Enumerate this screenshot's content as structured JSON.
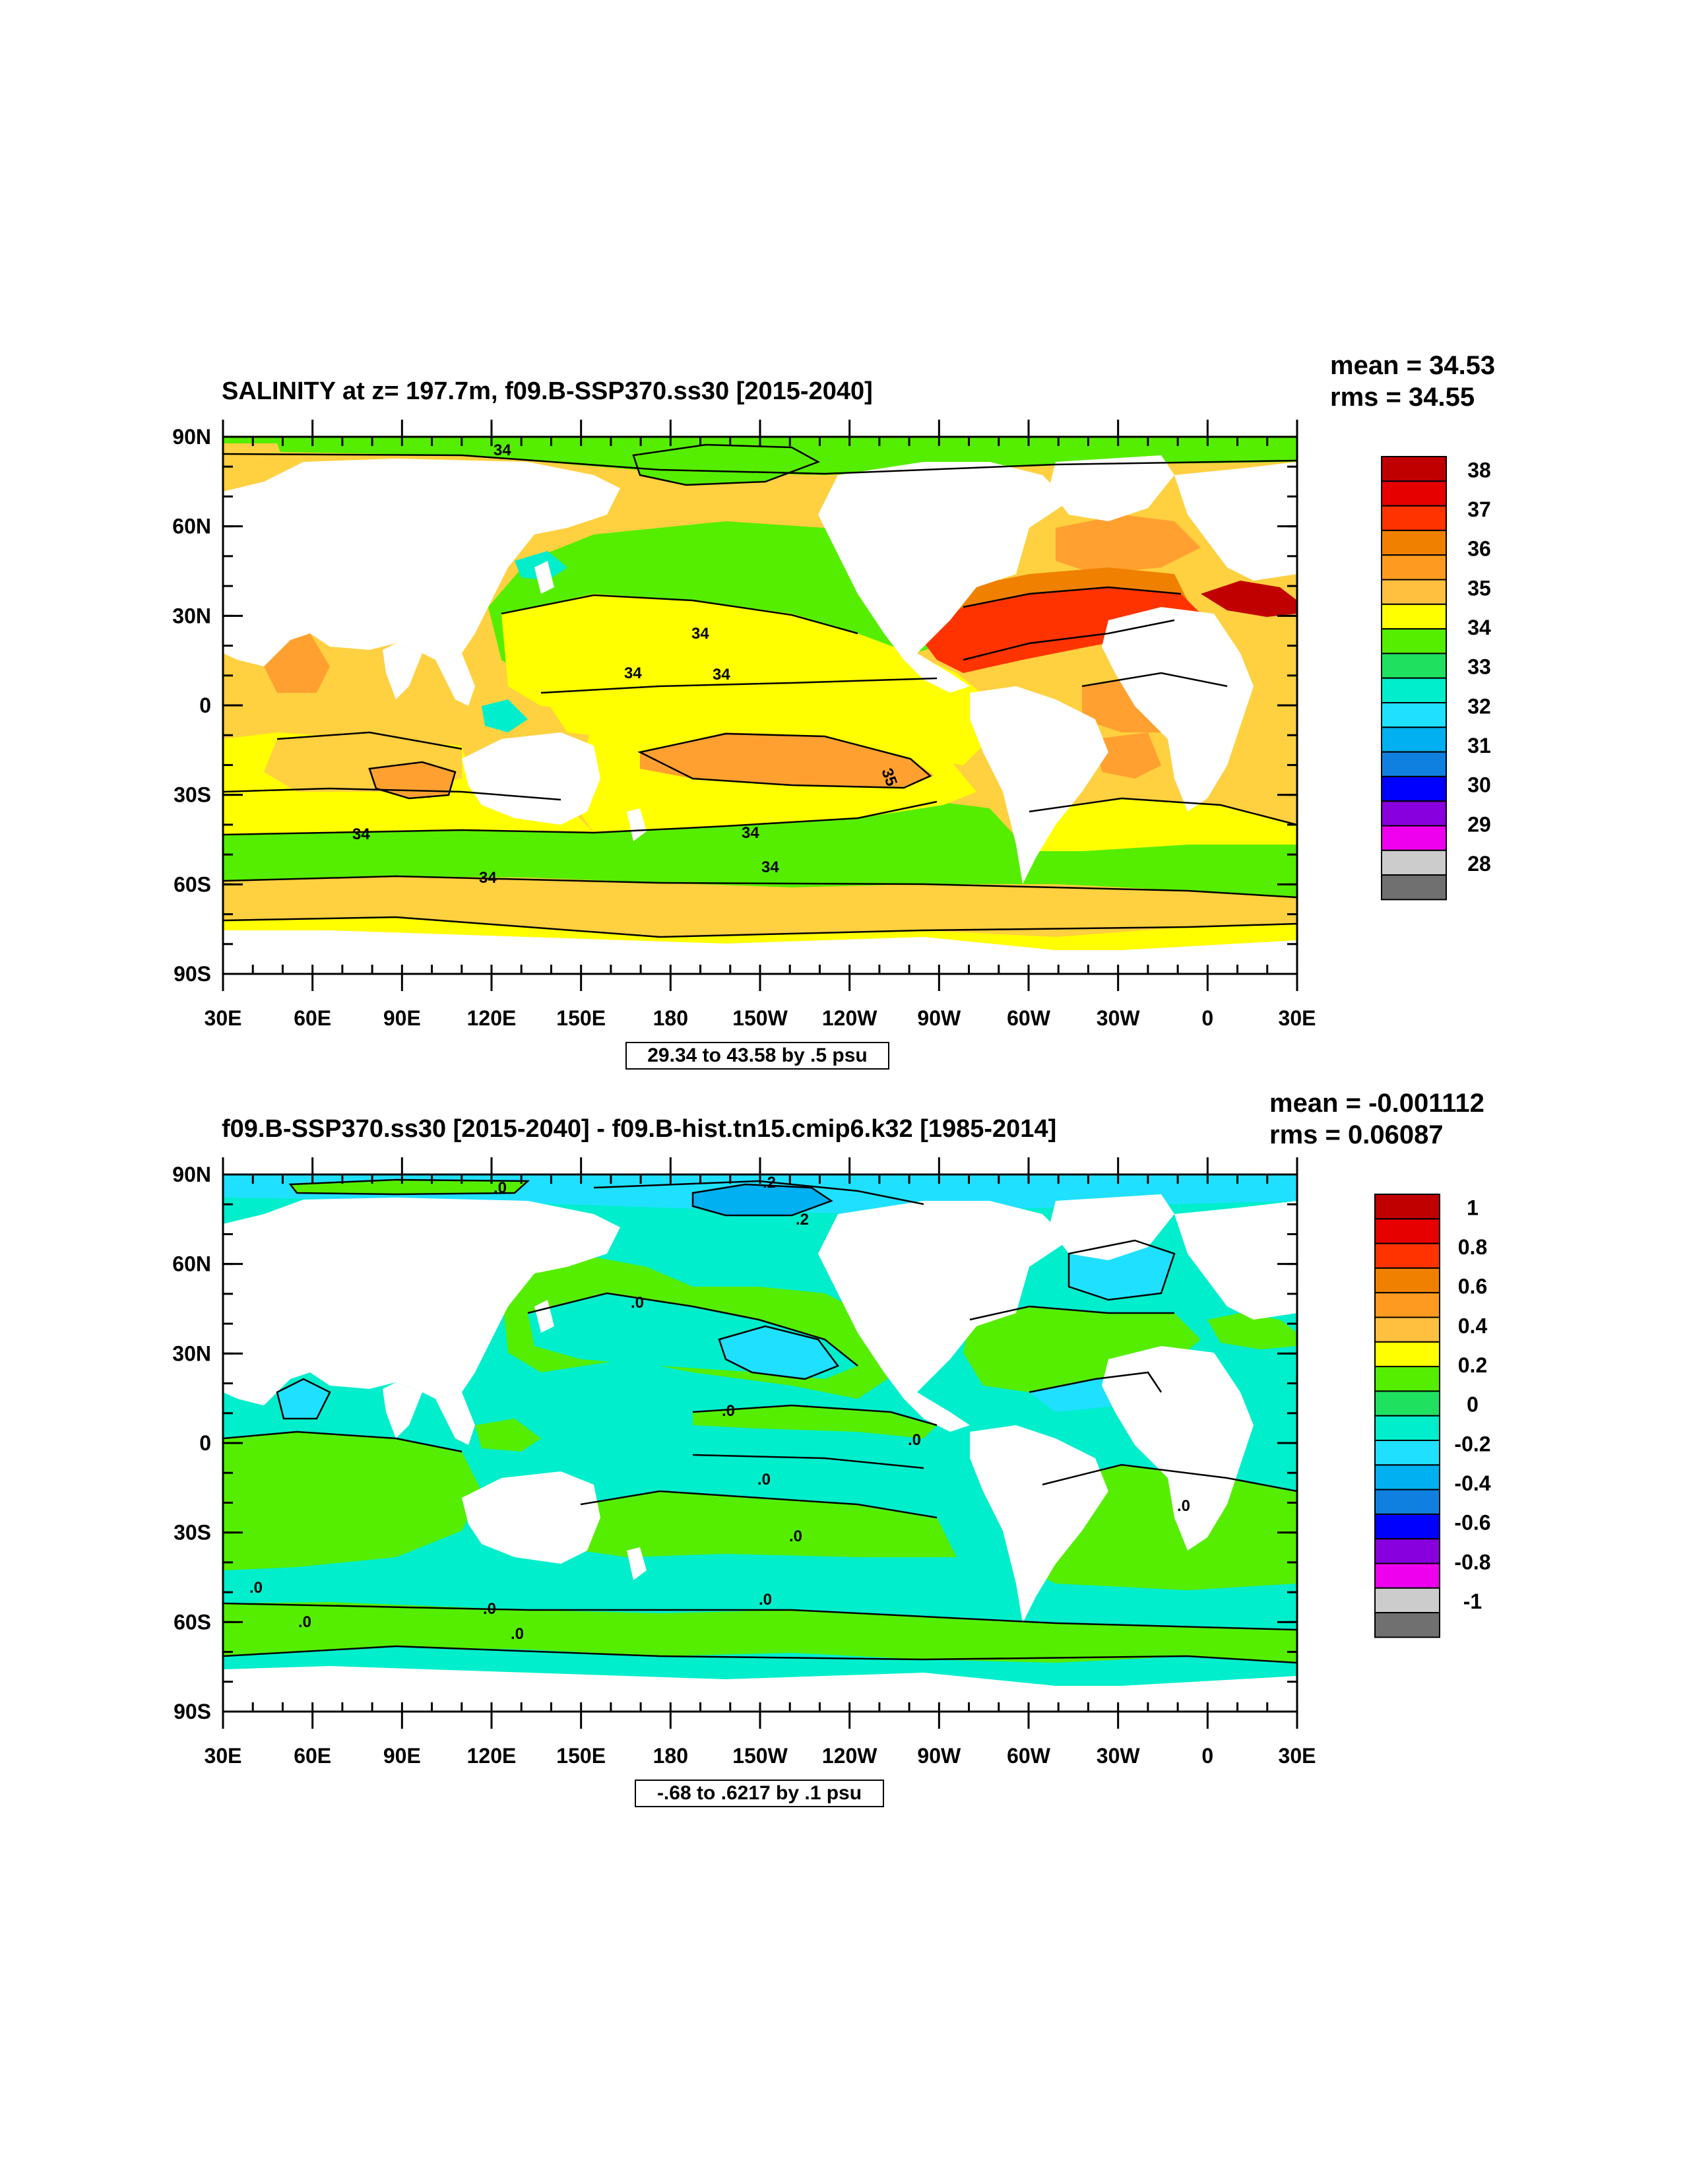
{
  "panels": [
    {
      "title": "SALINITY at z= 197.7m, f09.B-SSP370.ss30 [2015-2040]",
      "mean_text": "mean = 34.53",
      "rms_text": "rms = 34.55",
      "range_text": "29.34 to 43.58 by .5 psu",
      "lat_labels": [
        "90N",
        "60N",
        "30N",
        "0",
        "30S",
        "60S",
        "90S"
      ],
      "lon_labels": [
        "30E",
        "60E",
        "90E",
        "120E",
        "150E",
        "180",
        "150W",
        "120W",
        "90W",
        "60W",
        "30W",
        "0",
        "30E"
      ],
      "colorbar_labels": [
        "38",
        "37",
        "36",
        "35",
        "34",
        "33",
        "32",
        "31",
        "30",
        "29",
        "28"
      ],
      "colorbar_colors": [
        "#c00000",
        "#e60000",
        "#ff3300",
        "#f08000",
        "#ff9a20",
        "#ffc040",
        "#ffff00",
        "#55ee00",
        "#20e060",
        "#00eecc",
        "#20e0ff",
        "#00b0f0",
        "#1080e0",
        "#0000ff",
        "#8800dd",
        "#ee00ee",
        "#cccccc",
        "#707070"
      ],
      "contour_labels": [
        "34",
        "34",
        "34",
        "34",
        "35",
        "34",
        "34",
        "34",
        "34"
      ]
    },
    {
      "title": "f09.B-SSP370.ss30 [2015-2040] - f09.B-hist.tn15.cmip6.k32 [1985-2014]",
      "mean_text": "mean = -0.001112",
      "rms_text": "rms = 0.06087",
      "range_text": "-.68 to .6217 by .1 psu",
      "lat_labels": [
        "90N",
        "60N",
        "30N",
        "0",
        "30S",
        "60S",
        "90S"
      ],
      "lon_labels": [
        "30E",
        "60E",
        "90E",
        "120E",
        "150E",
        "180",
        "150W",
        "120W",
        "90W",
        "60W",
        "30W",
        "0",
        "30E"
      ],
      "colorbar_labels": [
        "1",
        "0.8",
        "0.6",
        "0.4",
        "0.2",
        "0",
        "-0.2",
        "-0.4",
        "-0.6",
        "-0.8",
        "-1"
      ],
      "colorbar_colors": [
        "#c00000",
        "#e60000",
        "#ff3300",
        "#f08000",
        "#ff9a20",
        "#ffc040",
        "#ffff00",
        "#55ee00",
        "#20e060",
        "#00eecc",
        "#20e0ff",
        "#00b0f0",
        "#1080e0",
        "#0000ff",
        "#8800dd",
        "#ee00ee",
        "#cccccc",
        "#707070"
      ],
      "contour_labels": [
        ".2",
        ".2",
        ".0",
        ".0",
        ".0",
        ".0",
        ".0",
        ".0",
        ".0",
        ".0",
        ".0",
        ".0",
        ".0",
        ".0"
      ]
    }
  ],
  "colors": {
    "land": "#ffffff",
    "p1_arctic_rim": "#ffd040",
    "p1_green": "#55ee00",
    "p1_yellow": "#ffff00",
    "p1_gold": "#ffd040",
    "p1_orange": "#ffa030",
    "p1_darkorange": "#f08000",
    "p1_red": "#ff3300",
    "p1_darkred": "#c00000",
    "p1_teal": "#00eecc",
    "p2_teal": "#00eecc",
    "p2_green": "#55ee00",
    "p2_cyan": "#20e0ff",
    "p2_blue": "#00b0f0",
    "p2_yellow": "#ffff00",
    "p2_orange": "#ffa030"
  }
}
